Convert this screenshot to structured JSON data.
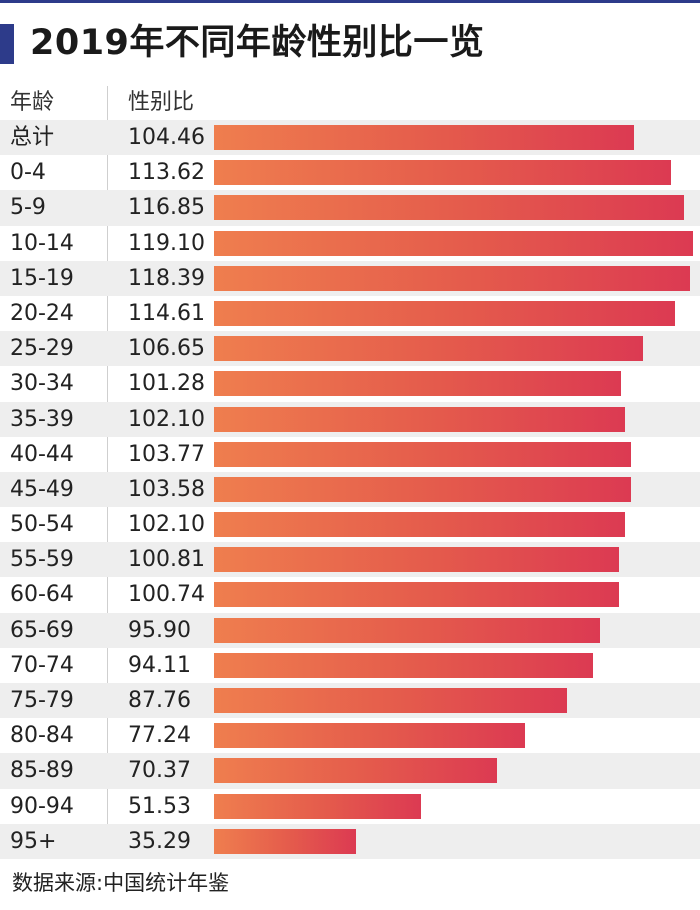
{
  "title": "2019年不同年龄性别比一览",
  "headers": {
    "age": "年龄",
    "ratio": "性别比"
  },
  "source": "数据来源:中国统计年鉴",
  "colors": {
    "accent": "#2d3b8a",
    "bar_start": "#ef7e4e",
    "bar_end": "#dc3a52",
    "alt_row": "#eeeeee"
  },
  "chart_data": {
    "type": "bar",
    "orientation": "horizontal",
    "categories": [
      "总计",
      "0-4",
      "5-9",
      "10-14",
      "15-19",
      "20-24",
      "25-29",
      "30-34",
      "35-39",
      "40-44",
      "45-49",
      "50-54",
      "55-59",
      "60-64",
      "65-69",
      "70-74",
      "75-79",
      "80-84",
      "85-89",
      "90-94",
      "95+"
    ],
    "labels": [
      "104.46",
      "113.62",
      "116.85",
      "119.10",
      "118.39",
      "114.61",
      "106.65",
      "101.28",
      "102.10",
      "103.77",
      "103.58",
      "102.10",
      "100.81",
      "100.74",
      "95.90",
      "94.11",
      "87.76",
      "77.24",
      "70.37",
      "51.53",
      "35.29"
    ],
    "values": [
      104.46,
      113.62,
      116.85,
      119.1,
      118.39,
      114.61,
      106.65,
      101.28,
      102.1,
      103.77,
      103.58,
      102.1,
      100.81,
      100.74,
      95.9,
      94.11,
      87.76,
      77.24,
      70.37,
      51.53,
      35.29
    ],
    "title": "2019年不同年龄性别比一览",
    "xlabel": "性别比",
    "ylabel": "年龄",
    "xlim": [
      0,
      119.1
    ],
    "grid": false,
    "legend": "none"
  }
}
